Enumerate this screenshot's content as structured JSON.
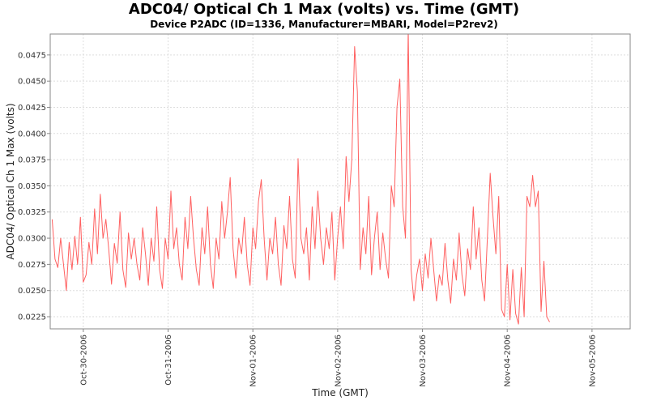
{
  "chart_data": {
    "type": "line",
    "title": "ADC04/ Optical Ch 1 Max (volts) vs. Time (GMT)",
    "subtitle": "Device P2ADC (ID=1336, Manufacturer=MBARI, Model=P2rev2)",
    "xlabel": "Time (GMT)",
    "ylabel": "ADC04/ Optical Ch 1 Max (volts)",
    "x_ticks": [
      "Oct-30-2006",
      "Oct-31-2006",
      "Nov-01-2006",
      "Nov-02-2006",
      "Nov-03-2006",
      "Nov-04-2006",
      "Nov-05-2006"
    ],
    "x_tick_days": [
      0,
      1,
      2,
      3,
      4,
      5,
      6
    ],
    "xlim_days": [
      -0.39,
      6.45
    ],
    "y_ticks": [
      "0.0225",
      "0.0250",
      "0.0275",
      "0.0300",
      "0.0325",
      "0.0350",
      "0.0375",
      "0.0400",
      "0.0425",
      "0.0450",
      "0.0475"
    ],
    "ylim": [
      0.02134,
      0.0495
    ],
    "grid": true,
    "series": [
      {
        "name": "ADC04/ Optical Ch 1 Max",
        "color": "#ff4444",
        "start_day": -0.3667,
        "step_days": 0.03333,
        "values": [
          0.0318,
          0.028,
          0.0272,
          0.03,
          0.0275,
          0.025,
          0.0296,
          0.027,
          0.0302,
          0.0275,
          0.032,
          0.0258,
          0.0265,
          0.0296,
          0.0275,
          0.0328,
          0.0285,
          0.0342,
          0.03,
          0.0318,
          0.029,
          0.0256,
          0.0295,
          0.0276,
          0.0325,
          0.027,
          0.0253,
          0.0305,
          0.028,
          0.03,
          0.0275,
          0.026,
          0.031,
          0.0285,
          0.0255,
          0.03,
          0.0278,
          0.033,
          0.027,
          0.0252,
          0.03,
          0.028,
          0.0345,
          0.029,
          0.031,
          0.0275,
          0.026,
          0.032,
          0.029,
          0.034,
          0.03,
          0.027,
          0.0255,
          0.031,
          0.0285,
          0.033,
          0.0275,
          0.0252,
          0.03,
          0.028,
          0.0335,
          0.03,
          0.0325,
          0.0358,
          0.029,
          0.0262,
          0.03,
          0.0285,
          0.032,
          0.0275,
          0.0255,
          0.031,
          0.029,
          0.0335,
          0.0356,
          0.03,
          0.026,
          0.03,
          0.0285,
          0.032,
          0.0275,
          0.0255,
          0.0312,
          0.029,
          0.034,
          0.028,
          0.0262,
          0.0376,
          0.03,
          0.0285,
          0.031,
          0.026,
          0.033,
          0.029,
          0.0345,
          0.03,
          0.0275,
          0.031,
          0.029,
          0.0325,
          0.026,
          0.03,
          0.033,
          0.029,
          0.0378,
          0.0335,
          0.0375,
          0.0483,
          0.044,
          0.027,
          0.031,
          0.0285,
          0.034,
          0.0265,
          0.03,
          0.0325,
          0.027,
          0.0305,
          0.028,
          0.0262,
          0.035,
          0.033,
          0.0425,
          0.0452,
          0.033,
          0.03,
          0.05,
          0.027,
          0.024,
          0.0265,
          0.028,
          0.025,
          0.0285,
          0.0262,
          0.03,
          0.027,
          0.024,
          0.0265,
          0.0255,
          0.0295,
          0.026,
          0.0238,
          0.028,
          0.026,
          0.0305,
          0.0265,
          0.0245,
          0.029,
          0.027,
          0.033,
          0.028,
          0.031,
          0.026,
          0.024,
          0.03,
          0.0362,
          0.032,
          0.0285,
          0.034,
          0.0232,
          0.0225,
          0.0275,
          0.0222,
          0.027,
          0.0228,
          0.0218,
          0.0272,
          0.0225,
          0.034,
          0.033,
          0.036,
          0.033,
          0.0345,
          0.023,
          0.0278,
          0.0225,
          0.022
        ]
      }
    ]
  }
}
